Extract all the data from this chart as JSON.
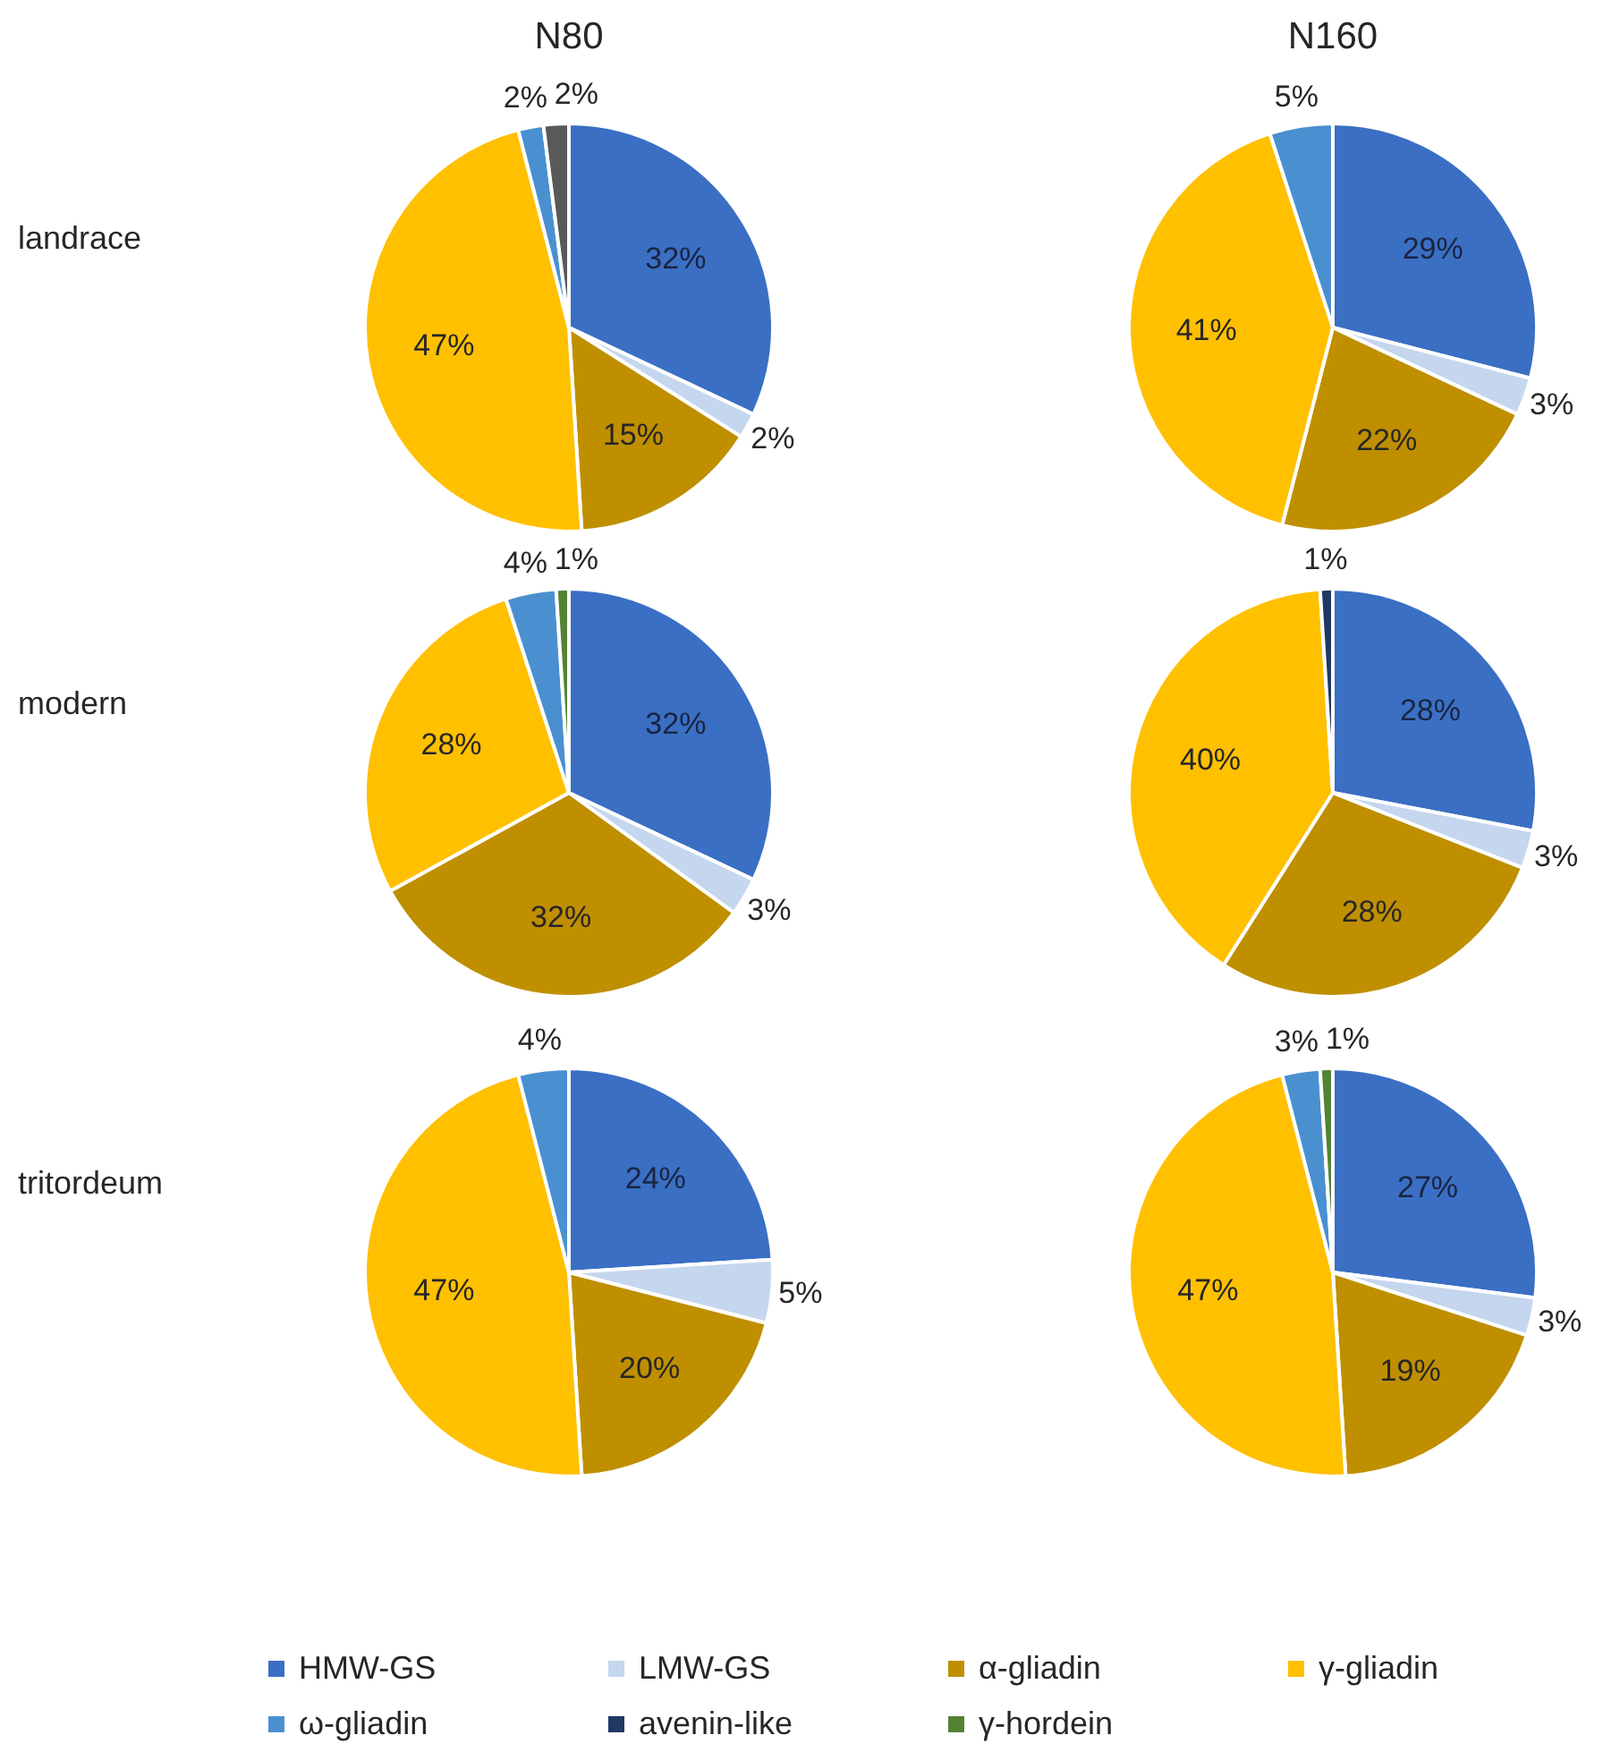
{
  "chart_data": [
    {
      "type": "pie",
      "title": "N80",
      "ylabel": "landrace",
      "categories": [
        "HMW-GS",
        "LMW-GS",
        "α-gliadin",
        "γ-gliadin",
        "ω-gliadin",
        null,
        "avenin-like",
        "γ-hordein"
      ],
      "values": [
        32,
        2,
        15,
        47,
        2,
        2,
        null,
        null
      ],
      "value_labels": [
        "32%",
        "2%",
        "15%",
        "47%",
        "2%",
        "2%",
        null,
        null
      ],
      "colors": [
        "#3a6fc4",
        "#c5d6ef",
        "#bf8f00",
        "#ffc000",
        "#4a90d0",
        "#595959",
        "#1f3864",
        "#548235"
      ],
      "legend": "bottom"
    },
    {
      "type": "pie",
      "title": "N160",
      "categories": [
        null,
        null,
        null,
        null,
        null
      ],
      "values": [
        29,
        3,
        22,
        41,
        5
      ],
      "value_labels": [
        "29%",
        "3%",
        "22%",
        "41%",
        "5%"
      ],
      "colors": [
        "#3a6fc4",
        "#c5d6ef",
        "#bf8f00",
        "#ffc000",
        "#4a90d0"
      ]
    },
    {
      "type": "pie",
      "ylabel": "modern",
      "categories": [
        null,
        null,
        null,
        null,
        null,
        null
      ],
      "values": [
        32,
        3,
        32,
        28,
        4,
        1
      ],
      "value_labels": [
        "32%",
        "3%",
        "32%",
        "28%",
        "4%",
        "1%"
      ],
      "colors": [
        "#3a6fc4",
        "#c5d6ef",
        "#bf8f00",
        "#ffc000",
        "#4a90d0",
        "#548235"
      ]
    },
    {
      "type": "pie",
      "categories": [
        null,
        null,
        null,
        null,
        null
      ],
      "values": [
        28,
        3,
        28,
        40,
        1
      ],
      "value_labels": [
        "28%",
        "3%",
        "28%",
        "40%",
        "1%"
      ],
      "colors": [
        "#3a6fc4",
        "#c5d6ef",
        "#bf8f00",
        "#ffc000",
        "#1f3864"
      ]
    },
    {
      "type": "pie",
      "ylabel": "tritordeum",
      "categories": [
        null,
        null,
        null,
        null,
        null
      ],
      "values": [
        24,
        5,
        20,
        47,
        4
      ],
      "value_labels": [
        "24%",
        "5%",
        "20%",
        "47%",
        "4%"
      ],
      "colors": [
        "#3a6fc4",
        "#c5d6ef",
        "#bf8f00",
        "#ffc000",
        "#4a90d0"
      ]
    },
    {
      "type": "pie",
      "categories": [
        null,
        null,
        null,
        null,
        null,
        null
      ],
      "values": [
        27,
        3,
        19,
        47,
        3,
        1
      ],
      "value_labels": [
        "27%",
        "3%",
        "19%",
        "47%",
        "3%",
        "1%"
      ],
      "colors": [
        "#3a6fc4",
        "#c5d6ef",
        "#bf8f00",
        "#ffc000",
        "#4a90d0",
        "#548235"
      ]
    }
  ]
}
